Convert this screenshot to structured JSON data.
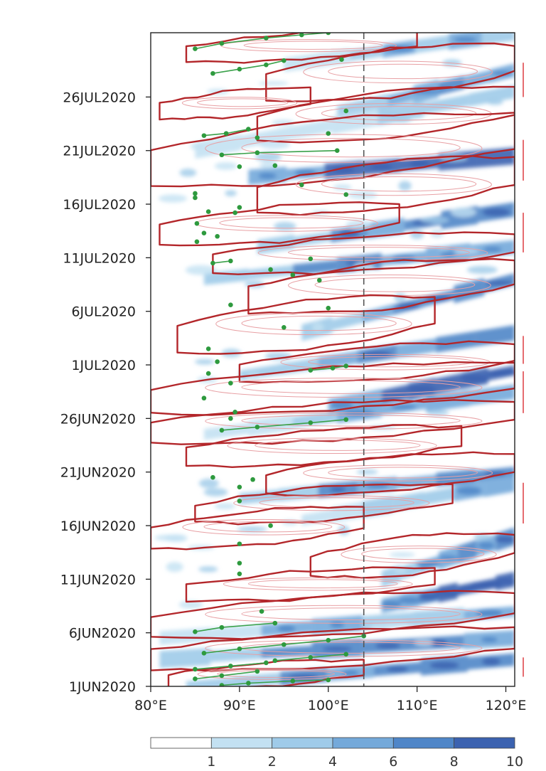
{
  "chart_data": {
    "type": "heatmap",
    "title": "",
    "xlabel": "",
    "ylabel": "",
    "x_ticks": [
      {
        "value": 80,
        "label": "80°E"
      },
      {
        "value": 90,
        "label": "90°E"
      },
      {
        "value": 100,
        "label": "100°E"
      },
      {
        "value": 110,
        "label": "110°E"
      },
      {
        "value": 120,
        "label": "120°E"
      }
    ],
    "xlim": [
      80,
      121
    ],
    "y_ticks": [
      {
        "day": 0,
        "label": "1JUN2020"
      },
      {
        "day": 5,
        "label": "6JUN2020"
      },
      {
        "day": 10,
        "label": "11JUN2020"
      },
      {
        "day": 15,
        "label": "16JUN2020"
      },
      {
        "day": 20,
        "label": "21JUN2020"
      },
      {
        "day": 25,
        "label": "26JUN2020"
      },
      {
        "day": 30,
        "label": "1JUL2020"
      },
      {
        "day": 35,
        "label": "6JUL2020"
      },
      {
        "day": 40,
        "label": "11JUL2020"
      },
      {
        "day": 45,
        "label": "16JUL2020"
      },
      {
        "day": 50,
        "label": "21JUL2020"
      },
      {
        "day": 55,
        "label": "26JUL2020"
      }
    ],
    "ylim": [
      0,
      61
    ],
    "reference_line_lon": 104,
    "colorbar": {
      "levels": [
        "1",
        "2",
        "4",
        "6",
        "8",
        "10"
      ],
      "colors": [
        "#ffffff",
        "#c3e1f2",
        "#9fcbe9",
        "#74a9da",
        "#4f86c8",
        "#3b62b0"
      ]
    },
    "heat_bands": [
      {
        "start_lon": 95,
        "start_day": 58,
        "end_lon": 121,
        "end_day": 61,
        "intensity": 3
      },
      {
        "start_lon": 101,
        "start_day": 53.5,
        "end_lon": 121,
        "end_day": 57.5,
        "intensity": 4
      },
      {
        "start_lon": 85,
        "start_day": 50,
        "end_lon": 121,
        "end_day": 55.5,
        "intensity": 2
      },
      {
        "start_lon": 91,
        "start_day": 47.5,
        "end_lon": 121,
        "end_day": 49.5,
        "intensity": 5
      },
      {
        "start_lon": 92,
        "start_day": 41,
        "end_lon": 121,
        "end_day": 44.5,
        "intensity": 4
      },
      {
        "start_lon": 86,
        "start_day": 38,
        "end_lon": 121,
        "end_day": 41,
        "intensity": 4
      },
      {
        "start_lon": 97,
        "start_day": 33,
        "end_lon": 121,
        "end_day": 38,
        "intensity": 4
      },
      {
        "start_lon": 90,
        "start_day": 29,
        "end_lon": 121,
        "end_day": 33,
        "intensity": 4
      },
      {
        "start_lon": 100,
        "start_day": 26,
        "end_lon": 121,
        "end_day": 29.5,
        "intensity": 5
      },
      {
        "start_lon": 86,
        "start_day": 23.5,
        "end_lon": 121,
        "end_day": 27.5,
        "intensity": 3
      },
      {
        "start_lon": 90,
        "start_day": 17.5,
        "end_lon": 121,
        "end_day": 20,
        "intensity": 4
      },
      {
        "start_lon": 97,
        "start_day": 15.5,
        "end_lon": 121,
        "end_day": 19,
        "intensity": 3
      },
      {
        "start_lon": 106,
        "start_day": 10,
        "end_lon": 121,
        "end_day": 14,
        "intensity": 4
      },
      {
        "start_lon": 106,
        "start_day": 7.5,
        "end_lon": 121,
        "end_day": 10,
        "intensity": 5
      },
      {
        "start_lon": 81,
        "start_day": 4.5,
        "end_lon": 121,
        "end_day": 7,
        "intensity": 3
      },
      {
        "start_lon": 81,
        "start_day": 2.5,
        "end_lon": 121,
        "end_day": 4.5,
        "intensity": 4
      },
      {
        "start_lon": 84,
        "start_day": 0,
        "end_lon": 121,
        "end_day": 2.5,
        "intensity": 4
      }
    ],
    "tracks": [
      [
        [
          85,
          59.5
        ],
        [
          88,
          60
        ],
        [
          93,
          60.5
        ],
        [
          97,
          60.8
        ],
        [
          100,
          61
        ]
      ],
      [
        [
          87,
          57.2
        ],
        [
          90,
          57.6
        ],
        [
          93,
          58
        ],
        [
          95,
          58.4
        ]
      ],
      [
        [
          86,
          51.4
        ],
        [
          88.5,
          51.6
        ],
        [
          91,
          52
        ]
      ],
      [
        [
          88,
          49.6
        ],
        [
          92,
          49.8
        ],
        [
          101,
          50
        ]
      ],
      [
        [
          87,
          39.5
        ],
        [
          89,
          39.7
        ]
      ],
      [
        [
          98,
          29.5
        ],
        [
          100.5,
          29.7
        ],
        [
          102,
          29.9
        ]
      ],
      [
        [
          88,
          23.9
        ],
        [
          92,
          24.2
        ],
        [
          98,
          24.6
        ],
        [
          102,
          24.9
        ]
      ],
      [
        [
          85,
          5.1
        ],
        [
          88,
          5.5
        ],
        [
          94,
          5.9
        ]
      ],
      [
        [
          86,
          3.1
        ],
        [
          90,
          3.5
        ],
        [
          95,
          3.9
        ],
        [
          100,
          4.3
        ],
        [
          104,
          4.7
        ]
      ],
      [
        [
          85,
          1.6
        ],
        [
          89,
          1.9
        ],
        [
          93,
          2.2
        ]
      ],
      [
        [
          94,
          2.4
        ],
        [
          98,
          2.7
        ],
        [
          102,
          3.0
        ]
      ],
      [
        [
          85,
          0.7
        ],
        [
          88,
          1.0
        ],
        [
          92,
          1.4
        ]
      ],
      [
        [
          88,
          0.1
        ],
        [
          91,
          0.3
        ],
        [
          96,
          0.5
        ],
        [
          100,
          0.6
        ]
      ]
    ],
    "isolated_points": [
      [
        85,
        46
      ],
      [
        85,
        45.6
      ],
      [
        86.5,
        44.3
      ],
      [
        85.2,
        43.2
      ],
      [
        86,
        42.3
      ],
      [
        85.2,
        41.5
      ],
      [
        87.5,
        42
      ],
      [
        90,
        44.7
      ],
      [
        89.5,
        44.2
      ],
      [
        98,
        39.9
      ],
      [
        93.5,
        38.9
      ],
      [
        96,
        38.4
      ],
      [
        99,
        37.9
      ],
      [
        89,
        35.6
      ],
      [
        100,
        35.3
      ],
      [
        95,
        33.5
      ],
      [
        86.5,
        31.5
      ],
      [
        87.5,
        30.3
      ],
      [
        86.5,
        29.2
      ],
      [
        89,
        28.3
      ],
      [
        86,
        26.9
      ],
      [
        89.5,
        25.6
      ],
      [
        89,
        25
      ],
      [
        87,
        19.5
      ],
      [
        90,
        18.6
      ],
      [
        91.5,
        19.3
      ],
      [
        90,
        17.3
      ],
      [
        93.5,
        15
      ],
      [
        90,
        13.3
      ],
      [
        90,
        11.5
      ],
      [
        90,
        10.5
      ],
      [
        92.5,
        7
      ],
      [
        90,
        48.5
      ],
      [
        94,
        48.6
      ],
      [
        92,
        51.2
      ],
      [
        97,
        46.8
      ],
      [
        102,
        45.9
      ],
      [
        102,
        53.7
      ],
      [
        100,
        51.6
      ],
      [
        101.5,
        58.5
      ]
    ],
    "contour_loops": [
      {
        "lon": [
          84,
          110
        ],
        "day": [
          58.5,
          61
        ],
        "tilt": 0.08
      },
      {
        "lon": [
          93,
          121
        ],
        "day": [
          55,
          59.5
        ],
        "tilt": 0.12
      },
      {
        "lon": [
          81,
          98
        ],
        "day": [
          53.2,
          55.6
        ],
        "tilt": 0.05
      },
      {
        "lon": [
          92,
          121
        ],
        "day": [
          51.2,
          55.5
        ],
        "tilt": 0.14
      },
      {
        "lon": [
          80,
          121
        ],
        "day": [
          47.2,
          53
        ],
        "tilt": 0.14
      },
      {
        "lon": [
          92,
          121
        ],
        "day": [
          44.5,
          49
        ],
        "tilt": 0.1
      },
      {
        "lon": [
          81,
          108
        ],
        "day": [
          41.5,
          44.8
        ],
        "tilt": 0.1
      },
      {
        "lon": [
          87,
          121
        ],
        "day": [
          38.8,
          42
        ],
        "tilt": 0.06
      },
      {
        "lon": [
          91,
          121
        ],
        "day": [
          35.2,
          39.5
        ],
        "tilt": 0.12
      },
      {
        "lon": [
          83,
          112
        ],
        "day": [
          31.5,
          36
        ],
        "tilt": 0.1
      },
      {
        "lon": [
          90,
          121
        ],
        "day": [
          28.6,
          31.8
        ],
        "tilt": 0.14
      },
      {
        "lon": [
          80,
          121
        ],
        "day": [
          25.8,
          29.8
        ],
        "tilt": 0.13
      },
      {
        "lon": [
          80,
          121
        ],
        "day": [
          23,
          26.4
        ],
        "tilt": 0.08
      },
      {
        "lon": [
          84,
          115
        ],
        "day": [
          20.8,
          24
        ],
        "tilt": 0.1
      },
      {
        "lon": [
          93,
          121
        ],
        "day": [
          18.2,
          21.5
        ],
        "tilt": 0.12
      },
      {
        "lon": [
          85,
          114
        ],
        "day": [
          15.5,
          18.6
        ],
        "tilt": 0.1
      },
      {
        "lon": [
          80,
          104
        ],
        "day": [
          13.2,
          16.4
        ],
        "tilt": 0.06
      },
      {
        "lon": [
          98,
          121
        ],
        "day": [
          10.5,
          14
        ],
        "tilt": 0.12
      },
      {
        "lon": [
          84,
          112
        ],
        "day": [
          8.2,
          10.8
        ],
        "tilt": 0.05
      },
      {
        "lon": [
          80,
          121
        ],
        "day": [
          4.8,
          8.5
        ],
        "tilt": 0.15
      },
      {
        "lon": [
          80,
          121
        ],
        "day": [
          1.8,
          5.2
        ],
        "tilt": 0.1
      },
      {
        "lon": [
          82,
          104
        ],
        "day": [
          0,
          2.2
        ],
        "tilt": 0.05
      }
    ],
    "right_marker_day_ranges": [
      [
        55,
        58.2
      ],
      [
        47.2,
        51
      ],
      [
        40.5,
        44.2
      ],
      [
        30.1,
        32.7
      ],
      [
        25.5,
        29.4
      ],
      [
        15.2,
        19
      ],
      [
        0.9,
        2.7
      ]
    ]
  }
}
